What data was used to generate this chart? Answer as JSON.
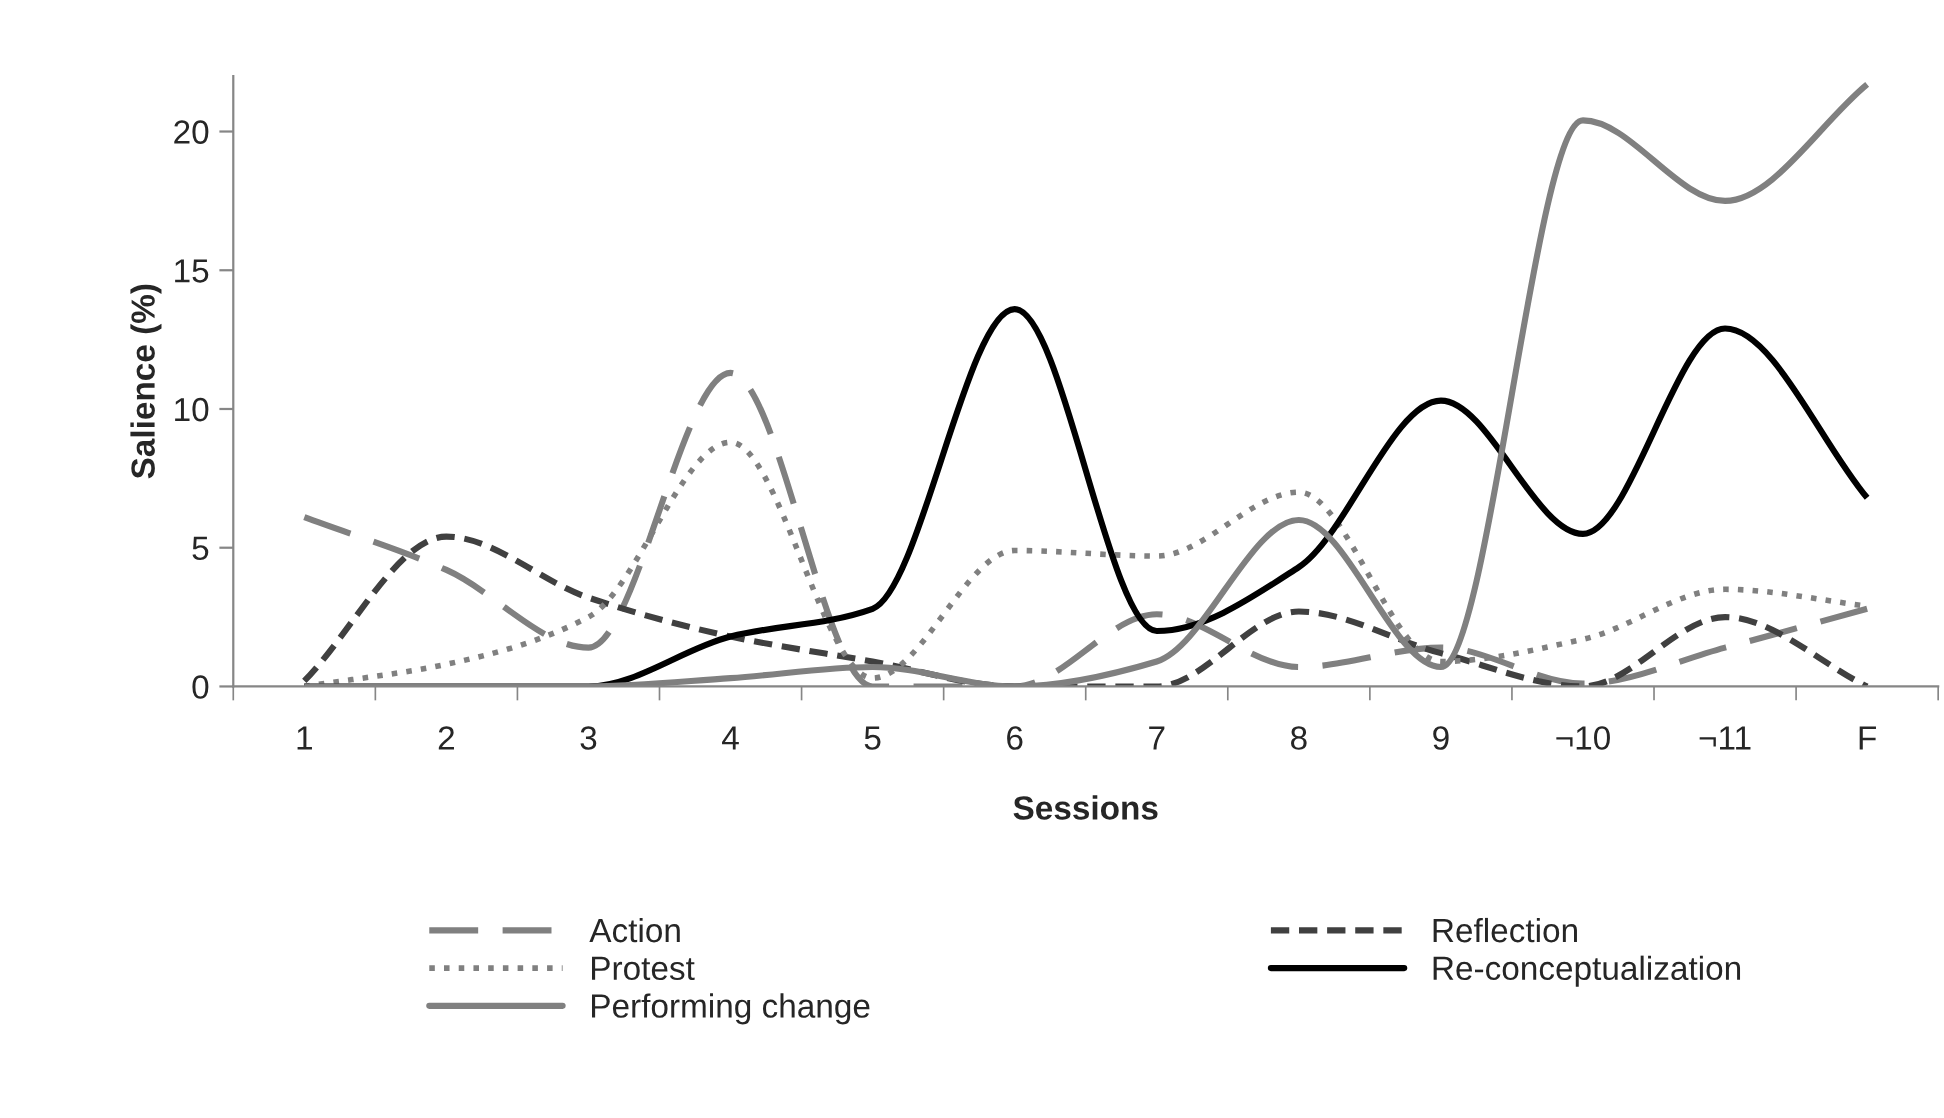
{
  "chart_data": {
    "type": "line",
    "xlabel": "Sessions",
    "ylabel": "Salience (%)",
    "categories": [
      "1",
      "2",
      "3",
      "4",
      "5",
      "6",
      "7",
      "8",
      "9",
      "¬10",
      "¬11",
      "F"
    ],
    "series": [
      {
        "name": "Action",
        "color": "#808080",
        "line_style": "dashed",
        "values": [
          6.1,
          4.2,
          1.4,
          11.3,
          0,
          0,
          2.6,
          0.7,
          1.4,
          0.1,
          1.4,
          2.8
        ]
      },
      {
        "name": "Reflection",
        "color": "#404040",
        "line_style": "dashed",
        "values": [
          0.2,
          5.4,
          3.2,
          1.8,
          0.9,
          0,
          0,
          2.7,
          1.2,
          0,
          2.5,
          0
        ]
      },
      {
        "name": "Protest",
        "color": "#808080",
        "line_style": "dotted",
        "values": [
          0,
          0.8,
          2.5,
          8.8,
          0.3,
          4.9,
          4.7,
          7.0,
          0.9,
          1.7,
          3.5,
          2.9
        ]
      },
      {
        "name": "Re-conceptualization",
        "color": "#000000",
        "line_style": "solid",
        "values": [
          0,
          0,
          0,
          1.8,
          2.8,
          13.6,
          2.0,
          4.3,
          10.3,
          5.5,
          12.9,
          6.8
        ]
      },
      {
        "name": "Performing change",
        "color": "#808080",
        "line_style": "solid",
        "values": [
          0,
          0,
          0,
          0.3,
          0.7,
          0,
          0.9,
          6.0,
          0.7,
          20.4,
          17.5,
          21.7
        ]
      }
    ],
    "ylim": [
      0,
      22
    ],
    "yticks": [
      0,
      5,
      10,
      15,
      20
    ],
    "grid": false,
    "legend": "bottom",
    "marker": "none"
  }
}
